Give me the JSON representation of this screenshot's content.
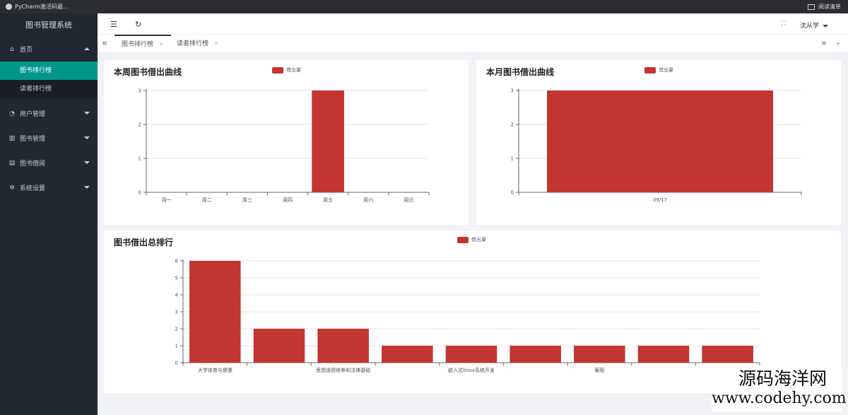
{
  "browser": {
    "tab_title": "PyCharm激活码最...",
    "reader_label": "阅读清单"
  },
  "sidebar": {
    "brand": "图书管理系统",
    "home": {
      "label": "首页",
      "sub": [
        {
          "label": "图书排行榜",
          "active": true
        },
        {
          "label": "读者排行榜",
          "active": false
        }
      ]
    },
    "items": [
      {
        "label": "用户管理"
      },
      {
        "label": "图书管理"
      },
      {
        "label": "图书借阅"
      },
      {
        "label": "系统设置"
      }
    ]
  },
  "topbar": {
    "menu_icon": "☰",
    "refresh_icon": "↻",
    "expand_icon": "⛶",
    "user_name": "沈从学"
  },
  "tabs": [
    {
      "label": "图书排行榜",
      "active": true
    },
    {
      "label": "读者排行榜",
      "active": false
    }
  ],
  "cards": {
    "weekly": {
      "title": "本周图书借出曲线",
      "legend": "借出量"
    },
    "monthly": {
      "title": "本月图书借出曲线",
      "legend": "借出量"
    },
    "total": {
      "title": "图书借出总排行",
      "legend": "借出量"
    }
  },
  "colors": {
    "bar": "#c23531",
    "accent": "#009688",
    "sidebar": "#222831"
  },
  "chart_data": [
    {
      "type": "bar",
      "title": "本周图书借出曲线",
      "categories": [
        "周一",
        "周二",
        "周三",
        "周四",
        "周五",
        "周六",
        "周日"
      ],
      "series": [
        {
          "name": "借出量",
          "values": [
            0,
            0,
            0,
            0,
            3,
            0,
            0
          ]
        }
      ],
      "yticks": [
        "0",
        "1",
        "2",
        "3"
      ],
      "ylim": [
        0,
        3
      ],
      "legend_position": "top-center",
      "grid": true
    },
    {
      "type": "bar",
      "title": "本月图书借出曲线",
      "categories": [
        "09/17"
      ],
      "series": [
        {
          "name": "借出量",
          "values": [
            3
          ]
        }
      ],
      "yticks": [
        "0",
        "1",
        "2",
        "3"
      ],
      "ylim": [
        0,
        3
      ],
      "legend_position": "top-center",
      "grid": true
    },
    {
      "type": "bar",
      "title": "图书借出总排行",
      "categories": [
        "大学体育与健康",
        "",
        "思想道德修养和法律基础",
        "",
        "嵌入式linux系统开发",
        "",
        "葡萄",
        "",
        ""
      ],
      "category_labels_shown": [
        "大学体育与健康",
        "思想道德修养和法律基础",
        "嵌入式linux系统开发",
        "葡萄"
      ],
      "series": [
        {
          "name": "借出量",
          "values": [
            6,
            2,
            2,
            1,
            1,
            1,
            1,
            1,
            1
          ]
        }
      ],
      "yticks": [
        "0",
        "1",
        "2",
        "3",
        "4",
        "5",
        "6"
      ],
      "ylim": [
        0,
        6
      ],
      "legend_position": "top-center",
      "grid": true
    }
  ],
  "watermark": {
    "cn": "源码海洋网",
    "en": "www.codehy.com"
  }
}
